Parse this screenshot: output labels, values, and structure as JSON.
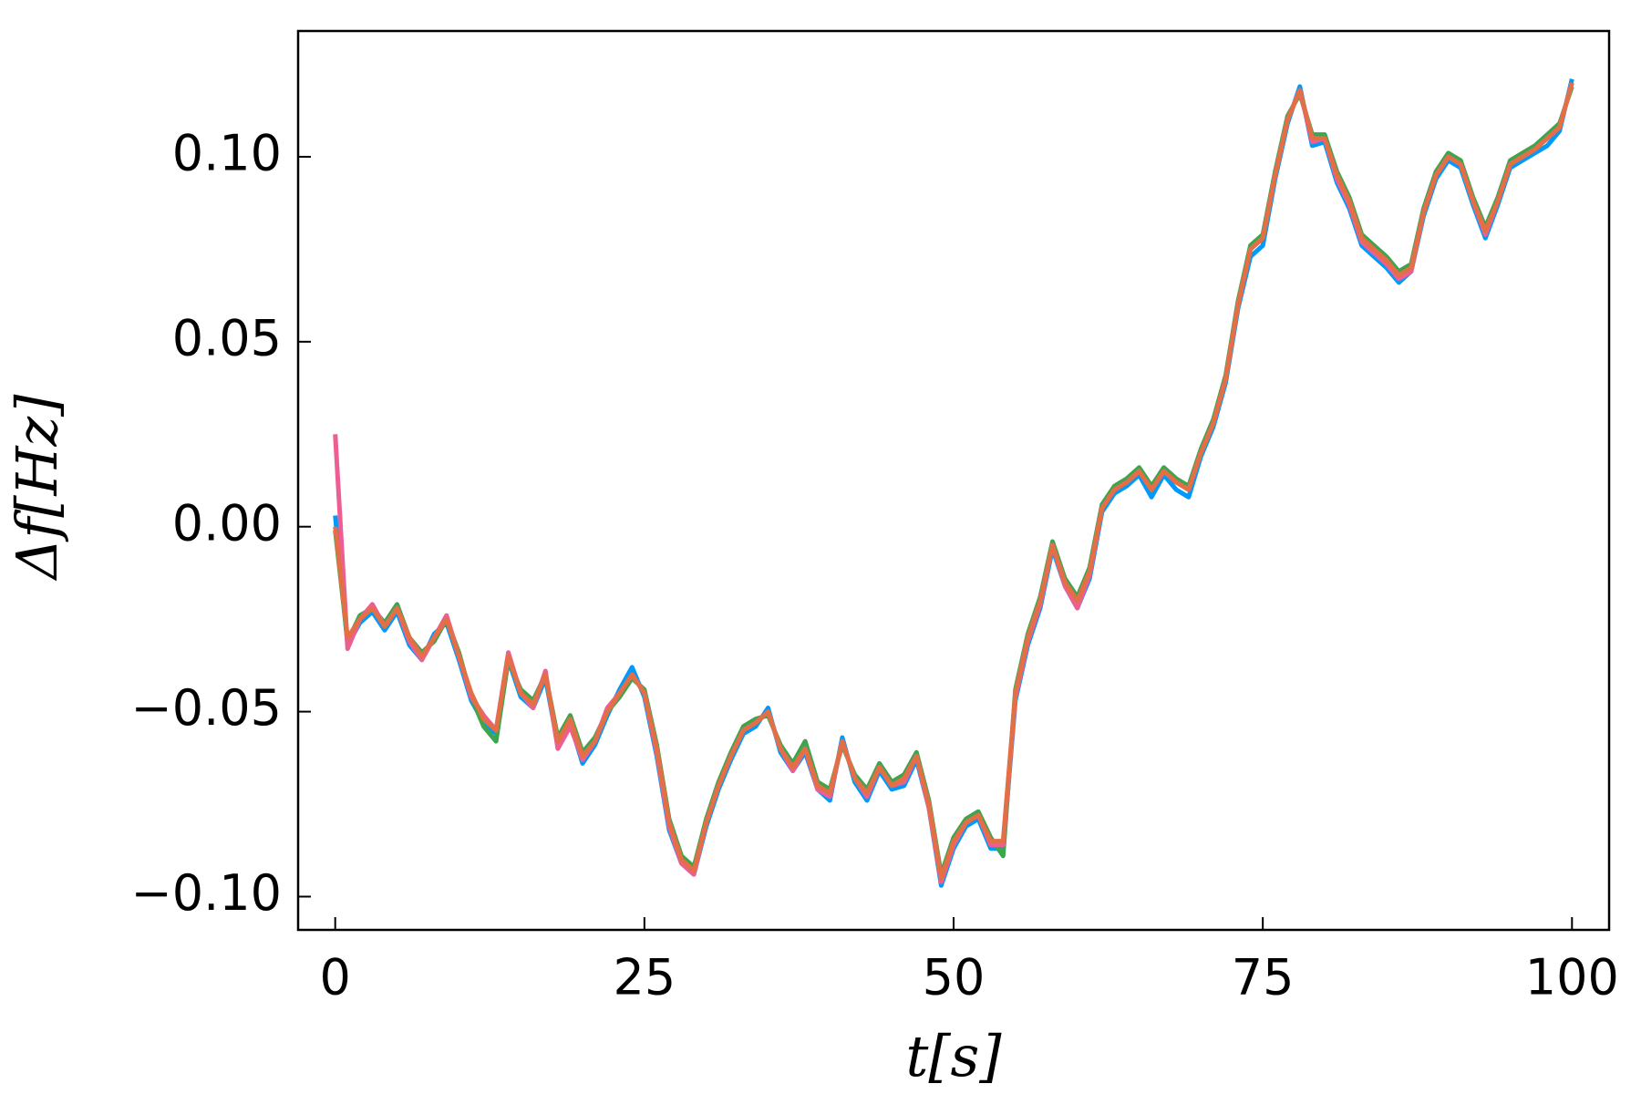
{
  "chart_data": {
    "type": "line",
    "xlabel": "t[s]",
    "ylabel": "Δf[Hz]",
    "x": [
      0,
      1,
      2,
      3,
      4,
      5,
      6,
      7,
      8,
      9,
      10,
      11,
      12,
      13,
      14,
      15,
      16,
      17,
      18,
      19,
      20,
      21,
      22,
      23,
      24,
      25,
      26,
      27,
      28,
      29,
      30,
      31,
      32,
      33,
      34,
      35,
      36,
      37,
      38,
      39,
      40,
      41,
      42,
      43,
      44,
      45,
      46,
      47,
      48,
      49,
      50,
      51,
      52,
      53,
      54,
      55,
      56,
      57,
      58,
      59,
      60,
      61,
      62,
      63,
      64,
      65,
      66,
      67,
      68,
      69,
      70,
      71,
      72,
      73,
      74,
      75,
      76,
      77,
      78,
      79,
      80,
      81,
      82,
      83,
      84,
      85,
      86,
      87,
      88,
      89,
      90,
      91,
      92,
      93,
      94,
      95,
      96,
      97,
      98,
      99,
      100
    ],
    "series": [
      {
        "color": "#009afa",
        "values": [
          0.003,
          -0.032,
          -0.026,
          -0.023,
          -0.028,
          -0.023,
          -0.032,
          -0.036,
          -0.029,
          -0.026,
          -0.036,
          -0.047,
          -0.053,
          -0.056,
          -0.036,
          -0.046,
          -0.049,
          -0.041,
          -0.059,
          -0.053,
          -0.064,
          -0.059,
          -0.051,
          -0.044,
          -0.038,
          -0.046,
          -0.062,
          -0.082,
          -0.091,
          -0.094,
          -0.081,
          -0.071,
          -0.063,
          -0.056,
          -0.054,
          -0.049,
          -0.061,
          -0.066,
          -0.061,
          -0.071,
          -0.074,
          -0.057,
          -0.069,
          -0.074,
          -0.066,
          -0.071,
          -0.07,
          -0.063,
          -0.076,
          -0.097,
          -0.087,
          -0.081,
          -0.079,
          -0.087,
          -0.087,
          -0.047,
          -0.032,
          -0.022,
          -0.006,
          -0.016,
          -0.022,
          -0.014,
          0.004,
          0.009,
          0.011,
          0.014,
          0.008,
          0.014,
          0.01,
          0.008,
          0.019,
          0.027,
          0.039,
          0.059,
          0.073,
          0.076,
          0.094,
          0.109,
          0.119,
          0.103,
          0.104,
          0.093,
          0.086,
          0.076,
          0.073,
          0.07,
          0.066,
          0.069,
          0.084,
          0.094,
          0.099,
          0.097,
          0.087,
          0.078,
          0.087,
          0.097,
          0.099,
          0.101,
          0.103,
          0.107,
          0.121
        ]
      },
      {
        "color": "#3ea44e",
        "values": [
          -0.001,
          -0.031,
          -0.024,
          -0.022,
          -0.026,
          -0.021,
          -0.03,
          -0.034,
          -0.031,
          -0.025,
          -0.034,
          -0.046,
          -0.054,
          -0.058,
          -0.036,
          -0.044,
          -0.047,
          -0.04,
          -0.057,
          -0.051,
          -0.061,
          -0.057,
          -0.05,
          -0.046,
          -0.041,
          -0.044,
          -0.059,
          -0.079,
          -0.089,
          -0.092,
          -0.079,
          -0.069,
          -0.061,
          -0.054,
          -0.052,
          -0.051,
          -0.059,
          -0.064,
          -0.058,
          -0.069,
          -0.071,
          -0.059,
          -0.067,
          -0.071,
          -0.064,
          -0.069,
          -0.067,
          -0.061,
          -0.074,
          -0.094,
          -0.084,
          -0.079,
          -0.077,
          -0.084,
          -0.089,
          -0.044,
          -0.029,
          -0.019,
          -0.004,
          -0.014,
          -0.019,
          -0.011,
          0.006,
          0.011,
          0.013,
          0.016,
          0.011,
          0.016,
          0.013,
          0.011,
          0.021,
          0.029,
          0.041,
          0.061,
          0.076,
          0.079,
          0.096,
          0.111,
          0.117,
          0.106,
          0.106,
          0.096,
          0.089,
          0.079,
          0.076,
          0.073,
          0.069,
          0.071,
          0.086,
          0.096,
          0.101,
          0.099,
          0.089,
          0.081,
          0.089,
          0.099,
          0.101,
          0.103,
          0.106,
          0.109,
          0.119
        ]
      },
      {
        "color": "#ed5e93",
        "values": [
          0.025,
          -0.033,
          -0.025,
          -0.021,
          -0.027,
          -0.022,
          -0.031,
          -0.036,
          -0.03,
          -0.024,
          -0.035,
          -0.046,
          -0.051,
          -0.055,
          -0.034,
          -0.045,
          -0.049,
          -0.039,
          -0.06,
          -0.054,
          -0.063,
          -0.058,
          -0.049,
          -0.045,
          -0.04,
          -0.045,
          -0.061,
          -0.081,
          -0.091,
          -0.094,
          -0.08,
          -0.07,
          -0.062,
          -0.055,
          -0.053,
          -0.05,
          -0.06,
          -0.066,
          -0.06,
          -0.071,
          -0.073,
          -0.058,
          -0.068,
          -0.073,
          -0.065,
          -0.07,
          -0.069,
          -0.062,
          -0.076,
          -0.096,
          -0.086,
          -0.08,
          -0.078,
          -0.086,
          -0.086,
          -0.046,
          -0.031,
          -0.021,
          -0.005,
          -0.016,
          -0.022,
          -0.013,
          0.005,
          0.01,
          0.012,
          0.015,
          0.01,
          0.015,
          0.012,
          0.01,
          0.02,
          0.028,
          0.04,
          0.06,
          0.075,
          0.078,
          0.095,
          0.11,
          0.118,
          0.104,
          0.105,
          0.094,
          0.087,
          0.077,
          0.074,
          0.071,
          0.067,
          0.069,
          0.085,
          0.095,
          0.1,
          0.098,
          0.088,
          0.079,
          0.088,
          0.098,
          0.1,
          0.102,
          0.105,
          0.108,
          0.12
        ]
      },
      {
        "color": "#e36f47",
        "values": [
          0.0,
          -0.03,
          -0.025,
          -0.022,
          -0.027,
          -0.022,
          -0.03,
          -0.035,
          -0.03,
          -0.025,
          -0.035,
          -0.045,
          -0.052,
          -0.055,
          -0.035,
          -0.045,
          -0.048,
          -0.04,
          -0.058,
          -0.052,
          -0.062,
          -0.058,
          -0.05,
          -0.045,
          -0.04,
          -0.045,
          -0.06,
          -0.08,
          -0.09,
          -0.093,
          -0.08,
          -0.07,
          -0.062,
          -0.055,
          -0.053,
          -0.05,
          -0.06,
          -0.065,
          -0.06,
          -0.07,
          -0.072,
          -0.058,
          -0.068,
          -0.072,
          -0.065,
          -0.07,
          -0.068,
          -0.062,
          -0.075,
          -0.095,
          -0.085,
          -0.08,
          -0.078,
          -0.085,
          -0.085,
          -0.045,
          -0.03,
          -0.02,
          -0.005,
          -0.015,
          -0.02,
          -0.012,
          0.005,
          0.01,
          0.012,
          0.015,
          0.01,
          0.015,
          0.012,
          0.01,
          0.02,
          0.028,
          0.04,
          0.06,
          0.075,
          0.078,
          0.095,
          0.11,
          0.118,
          0.105,
          0.105,
          0.095,
          0.088,
          0.078,
          0.075,
          0.072,
          0.068,
          0.07,
          0.085,
          0.095,
          0.1,
          0.098,
          0.088,
          0.08,
          0.088,
          0.098,
          0.1,
          0.102,
          0.105,
          0.108,
          0.12
        ]
      }
    ],
    "xlim": [
      -3,
      103
    ],
    "xticks": [
      0,
      25,
      50,
      75,
      100
    ],
    "ylim": [
      -0.109,
      0.134
    ],
    "yticks": [
      {
        "value": -0.1,
        "label": "−0.10"
      },
      {
        "value": -0.05,
        "label": "−0.05"
      },
      {
        "value": 0,
        "label": "0.00"
      },
      {
        "value": 0.05,
        "label": "0.05"
      },
      {
        "value": 0.1,
        "label": "0.10"
      }
    ],
    "grid": false
  }
}
